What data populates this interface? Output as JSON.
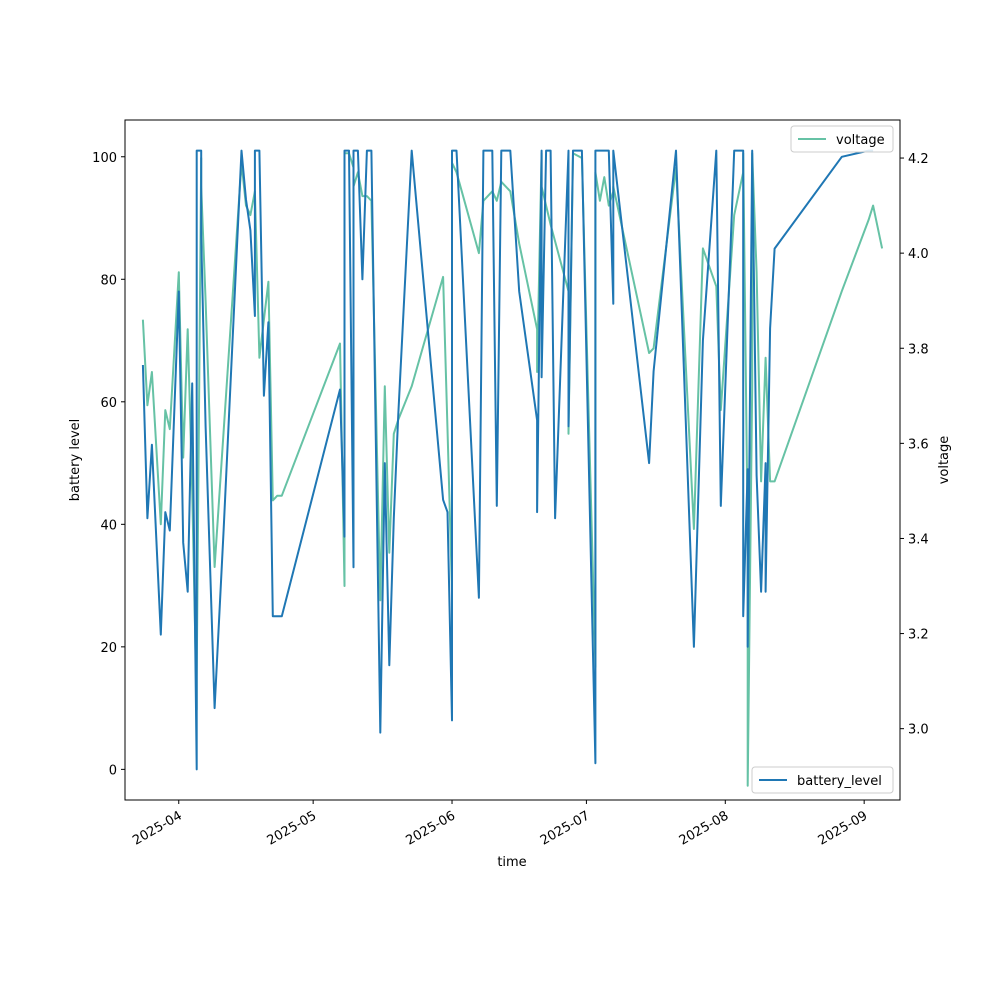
{
  "chart_data": {
    "type": "line",
    "xlabel": "time",
    "ylabel_left": "battery level",
    "ylabel_right": "voltage",
    "ylim_left": [
      -5,
      106
    ],
    "ylim_right": [
      2.85,
      4.28
    ],
    "xlim": [
      "2025-03-20",
      "2025-09-09"
    ],
    "x_ticks": [
      "2025-04",
      "2025-05",
      "2025-06",
      "2025-07",
      "2025-08",
      "2025-09"
    ],
    "y_ticks_left": [
      0,
      20,
      40,
      60,
      80,
      100
    ],
    "y_ticks_right": [
      3.0,
      3.2,
      3.4,
      3.6,
      3.8,
      4.0,
      4.2
    ],
    "grid": false,
    "colors": {
      "battery_level": "#1f77b4",
      "voltage": "#66c2a5"
    },
    "series": [
      {
        "name": "battery_level",
        "axis": "left",
        "x": [
          "2025-03-24",
          "2025-03-25",
          "2025-03-26",
          "2025-03-28",
          "2025-03-29",
          "2025-03-30",
          "2025-04-01",
          "2025-04-02",
          "2025-04-03",
          "2025-04-04",
          "2025-04-05",
          "2025-04-05",
          "2025-04-06",
          "2025-04-06",
          "2025-04-07",
          "2025-04-09",
          "2025-04-11",
          "2025-04-15",
          "2025-04-16",
          "2025-04-17",
          "2025-04-18",
          "2025-04-18",
          "2025-04-19",
          "2025-04-20",
          "2025-04-21",
          "2025-04-22",
          "2025-04-23",
          "2025-04-24",
          "2025-05-07",
          "2025-05-08",
          "2025-05-08",
          "2025-05-09",
          "2025-05-10",
          "2025-05-10",
          "2025-05-11",
          "2025-05-12",
          "2025-05-13",
          "2025-05-14",
          "2025-05-16",
          "2025-05-17",
          "2025-05-18",
          "2025-05-19",
          "2025-05-20",
          "2025-05-23",
          "2025-05-30",
          "2025-05-31",
          "2025-06-01",
          "2025-06-01",
          "2025-06-02",
          "2025-06-07",
          "2025-06-08",
          "2025-06-10",
          "2025-06-11",
          "2025-06-12",
          "2025-06-14",
          "2025-06-16",
          "2025-06-20",
          "2025-06-20",
          "2025-06-21",
          "2025-06-21",
          "2025-06-22",
          "2025-06-23",
          "2025-06-24",
          "2025-06-27",
          "2025-06-27",
          "2025-06-28",
          "2025-06-30",
          "2025-07-03",
          "2025-07-03",
          "2025-07-04",
          "2025-07-05",
          "2025-07-06",
          "2025-07-07",
          "2025-07-07",
          "2025-07-15",
          "2025-07-16",
          "2025-07-21",
          "2025-07-25",
          "2025-07-27",
          "2025-07-30",
          "2025-07-31",
          "2025-08-03",
          "2025-08-05",
          "2025-08-05",
          "2025-08-06",
          "2025-08-06",
          "2025-08-07",
          "2025-08-07",
          "2025-08-08",
          "2025-08-09",
          "2025-08-10",
          "2025-08-10",
          "2025-08-11",
          "2025-08-12",
          "2025-08-27",
          "2025-09-02",
          "2025-09-03"
        ],
        "y": [
          66,
          41,
          53,
          22,
          42,
          39,
          78,
          37,
          29,
          63,
          0,
          101,
          101,
          87,
          56,
          10,
          39,
          101,
          93,
          88,
          74,
          101,
          101,
          61,
          73,
          25,
          25,
          25,
          62,
          38,
          101,
          101,
          33,
          101,
          101,
          80,
          101,
          101,
          6,
          50,
          17,
          41,
          58,
          101,
          44,
          42,
          8,
          101,
          101,
          28,
          101,
          101,
          43,
          101,
          101,
          78,
          57,
          42,
          101,
          64,
          101,
          101,
          41,
          101,
          56,
          101,
          101,
          1,
          101,
          101,
          101,
          101,
          76,
          101,
          50,
          65,
          101,
          20,
          70,
          101,
          43,
          101,
          101,
          25,
          49,
          20,
          101,
          101,
          48,
          29,
          50,
          29,
          72,
          85,
          100,
          101,
          101
        ]
      },
      {
        "name": "voltage",
        "axis": "right",
        "x": [
          "2025-03-24",
          "2025-03-25",
          "2025-03-26",
          "2025-03-28",
          "2025-03-29",
          "2025-03-30",
          "2025-04-01",
          "2025-04-02",
          "2025-04-03",
          "2025-04-04",
          "2025-04-05",
          "2025-04-05",
          "2025-04-06",
          "2025-04-06",
          "2025-04-07",
          "2025-04-09",
          "2025-04-15",
          "2025-04-16",
          "2025-04-17",
          "2025-04-18",
          "2025-04-19",
          "2025-04-20",
          "2025-04-21",
          "2025-04-22",
          "2025-04-23",
          "2025-04-24",
          "2025-05-07",
          "2025-05-08",
          "2025-05-08",
          "2025-05-09",
          "2025-05-10",
          "2025-05-10",
          "2025-05-11",
          "2025-05-12",
          "2025-05-13",
          "2025-05-14",
          "2025-05-16",
          "2025-05-17",
          "2025-05-18",
          "2025-05-19",
          "2025-05-20",
          "2025-05-23",
          "2025-05-30",
          "2025-05-31",
          "2025-06-01",
          "2025-06-01",
          "2025-06-02",
          "2025-06-07",
          "2025-06-08",
          "2025-06-10",
          "2025-06-11",
          "2025-06-12",
          "2025-06-14",
          "2025-06-16",
          "2025-06-20",
          "2025-06-20",
          "2025-06-21",
          "2025-06-21",
          "2025-06-23",
          "2025-06-27",
          "2025-06-27",
          "2025-06-28",
          "2025-06-30",
          "2025-07-03",
          "2025-07-03",
          "2025-07-04",
          "2025-07-05",
          "2025-07-06",
          "2025-07-07",
          "2025-07-07",
          "2025-07-15",
          "2025-07-16",
          "2025-07-21",
          "2025-07-25",
          "2025-07-27",
          "2025-07-30",
          "2025-07-31",
          "2025-08-03",
          "2025-08-05",
          "2025-08-05",
          "2025-08-06",
          "2025-08-06",
          "2025-08-07",
          "2025-08-07",
          "2025-08-08",
          "2025-08-09",
          "2025-08-10",
          "2025-08-10",
          "2025-08-11",
          "2025-08-12",
          "2025-08-27",
          "2025-09-02",
          "2025-09-03",
          "2025-09-05"
        ],
        "y": [
          3.86,
          3.68,
          3.75,
          3.43,
          3.67,
          3.63,
          3.96,
          3.57,
          3.84,
          3.5,
          3.04,
          3.11,
          4.2,
          4.14,
          3.9,
          3.34,
          4.19,
          4.1,
          4.08,
          4.13,
          3.78,
          3.86,
          3.94,
          3.48,
          3.49,
          3.49,
          3.81,
          3.3,
          4.21,
          4.21,
          4.18,
          4.14,
          4.17,
          4.12,
          4.12,
          4.11,
          3.27,
          3.72,
          3.37,
          3.62,
          3.65,
          3.72,
          3.95,
          3.63,
          3.29,
          4.19,
          4.17,
          4.0,
          4.11,
          4.13,
          4.11,
          4.15,
          4.13,
          4.02,
          3.84,
          3.75,
          4.21,
          4.14,
          4.06,
          3.92,
          3.62,
          4.21,
          4.2,
          3.13,
          4.17,
          4.11,
          4.16,
          4.1,
          4.13,
          4.14,
          3.79,
          3.8,
          4.18,
          3.42,
          4.01,
          3.93,
          3.67,
          4.08,
          4.17,
          4.21,
          3.41,
          2.88,
          3.72,
          4.21,
          3.96,
          3.52,
          3.78,
          3.78,
          3.52,
          3.52,
          3.92,
          4.07,
          4.1,
          4.01
        ]
      }
    ],
    "legends": [
      {
        "series": "voltage",
        "placement": "upper-right"
      },
      {
        "series": "battery_level",
        "placement": "lower-right"
      }
    ]
  }
}
